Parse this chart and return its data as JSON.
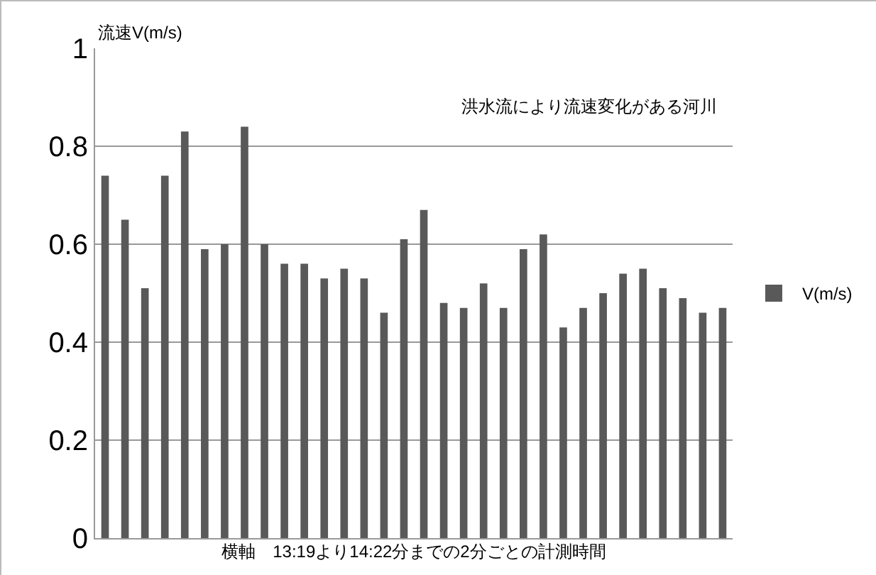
{
  "chart_data": {
    "type": "bar",
    "title": "洪水流により流速変化がある河川",
    "ylabel": "流速V(m/s)",
    "xlabel": "横軸　13:19より14:22分までの2分ごとの計測時間",
    "categories": [
      null,
      null,
      null,
      null,
      null,
      null,
      null,
      null,
      null,
      null,
      null,
      null,
      null,
      null,
      null,
      null,
      null,
      null,
      null,
      null,
      null,
      null,
      null,
      null,
      null,
      null,
      null,
      null,
      null,
      null,
      null,
      null
    ],
    "series": [
      {
        "name": "V(m/s)",
        "color": "#595959",
        "values": [
          0.74,
          0.65,
          0.51,
          0.74,
          0.83,
          0.59,
          0.6,
          0.84,
          0.6,
          0.56,
          0.56,
          0.53,
          0.55,
          0.53,
          0.46,
          0.61,
          0.67,
          0.48,
          0.47,
          0.52,
          0.47,
          0.59,
          0.62,
          0.43,
          0.47,
          0.5,
          0.54,
          0.55,
          0.51,
          0.49,
          0.46,
          0.47
        ]
      }
    ],
    "ylim": [
      0,
      1
    ],
    "yticks": [
      0,
      0.2,
      0.4,
      0.6,
      0.8,
      1
    ],
    "grid": "y",
    "legend": "right"
  }
}
